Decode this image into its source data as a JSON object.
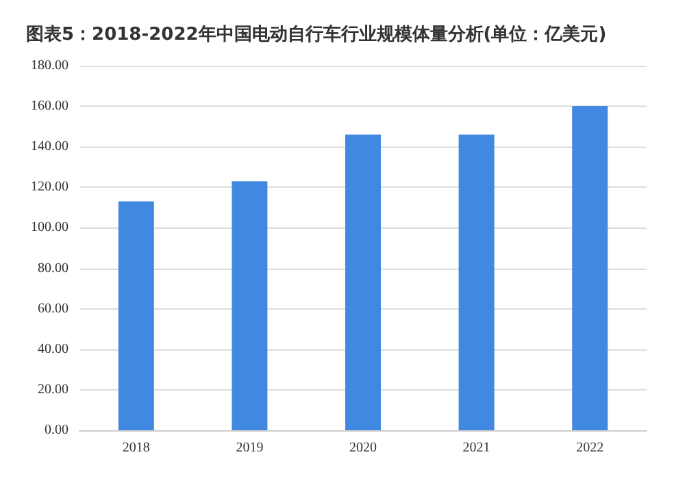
{
  "chart_data": {
    "type": "bar",
    "title": "图表5：2018-2022年中国电动自行车行业规模体量分析(单位：亿美元)",
    "categories": [
      "2018",
      "2019",
      "2020",
      "2021",
      "2022"
    ],
    "values": [
      113,
      123,
      146,
      146,
      160
    ],
    "color": "#4189e0",
    "ylim": [
      0,
      180
    ],
    "yticks": [
      {
        "value": 0,
        "label": "0.00"
      },
      {
        "value": 20,
        "label": "20.00"
      },
      {
        "value": 40,
        "label": "40.00"
      },
      {
        "value": 60,
        "label": "60.00"
      },
      {
        "value": 80,
        "label": "80.00"
      },
      {
        "value": 100,
        "label": "100.00"
      },
      {
        "value": 120,
        "label": "120.00"
      },
      {
        "value": 140,
        "label": "140.00"
      },
      {
        "value": 160,
        "label": "160.00"
      },
      {
        "value": 180,
        "label": "180.00"
      }
    ],
    "grid": "y"
  }
}
